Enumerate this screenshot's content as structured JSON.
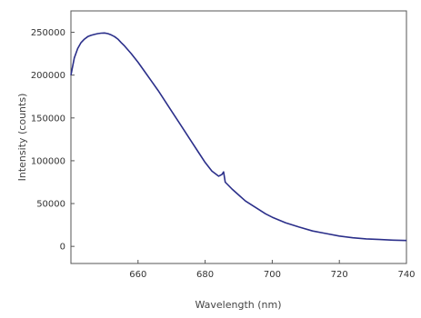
{
  "chart_data": {
    "type": "line",
    "title": "",
    "xlabel": "Wavelength (nm)",
    "ylabel": "Intensity (counts)",
    "xlim": [
      640,
      740
    ],
    "ylim": [
      -20000,
      275000
    ],
    "grid": false,
    "xticks": [
      {
        "value": 660,
        "label": "660"
      },
      {
        "value": 680,
        "label": "680"
      },
      {
        "value": 700,
        "label": "700"
      },
      {
        "value": 720,
        "label": "720"
      },
      {
        "value": 740,
        "label": "740"
      }
    ],
    "yticks": [
      {
        "value": 0,
        "label": "0"
      },
      {
        "value": 50000,
        "label": "50000"
      },
      {
        "value": 100000,
        "label": "100000"
      },
      {
        "value": 150000,
        "label": "150000"
      },
      {
        "value": 200000,
        "label": "200000"
      },
      {
        "value": 250000,
        "label": "250000"
      }
    ],
    "series": [
      {
        "color": "#2b2f8a",
        "x": [
          640,
          641,
          642,
          643,
          644,
          645,
          646,
          647,
          648,
          649,
          650,
          651,
          652,
          653,
          654,
          655,
          656,
          658,
          660,
          662,
          664,
          666,
          668,
          670,
          672,
          674,
          676,
          678,
          680,
          682,
          684,
          685,
          685.5,
          686,
          688,
          690,
          692,
          694,
          696,
          698,
          700,
          704,
          708,
          712,
          716,
          720,
          724,
          728,
          732,
          736,
          740
        ],
        "y": [
          200000,
          220000,
          231000,
          238000,
          242000,
          245000,
          246500,
          247500,
          248500,
          249000,
          249200,
          248500,
          247000,
          245000,
          242000,
          238000,
          234000,
          225000,
          215000,
          204000,
          193000,
          182000,
          170000,
          158000,
          146000,
          134000,
          122000,
          110000,
          98000,
          88000,
          82000,
          84000,
          87000,
          75000,
          67000,
          60000,
          53000,
          48000,
          43000,
          38000,
          34000,
          27500,
          22500,
          18000,
          15000,
          12000,
          10000,
          8800,
          8000,
          7300,
          6800
        ]
      }
    ]
  }
}
